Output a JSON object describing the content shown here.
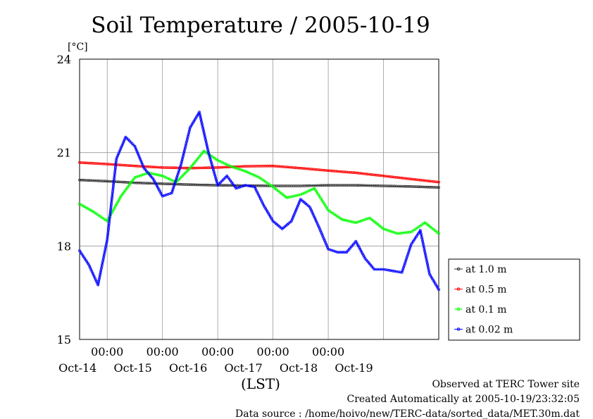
{
  "chart_data": {
    "type": "line",
    "title": "Soil Temperature / 2005-10-19",
    "ylabel": "[°C]",
    "xlabel": "(LST)",
    "ylim": [
      15,
      24
    ],
    "yticks": [
      15,
      18,
      21,
      24
    ],
    "x_range_days": [
      "2005-10-13 12:00",
      "2005-10-19 24:00"
    ],
    "xticks": [
      {
        "time": "2005-10-14 00:00",
        "label": "00:00",
        "date": "Oct-14"
      },
      {
        "time": "2005-10-15 00:00",
        "label": "00:00",
        "date": "Oct-15"
      },
      {
        "time": "2005-10-16 00:00",
        "label": "00:00",
        "date": "Oct-16"
      },
      {
        "time": "2005-10-17 00:00",
        "label": "00:00",
        "date": "Oct-17"
      },
      {
        "time": "2005-10-18 00:00",
        "label": "00:00",
        "date": "Oct-18"
      },
      {
        "time": "2005-10-19 00:00",
        "label": "",
        "date": "Oct-19"
      }
    ],
    "grid": true,
    "legend_position": "right",
    "series": [
      {
        "name": "at 1.0 m",
        "color": "#333333",
        "points": [
          [
            "2005-10-13 12:00",
            20.12
          ],
          [
            "2005-10-14 00:00",
            20.08
          ],
          [
            "2005-10-14 12:00",
            20.03
          ],
          [
            "2005-10-15 00:00",
            20.0
          ],
          [
            "2005-10-15 12:00",
            19.97
          ],
          [
            "2005-10-16 00:00",
            19.95
          ],
          [
            "2005-10-16 12:00",
            19.94
          ],
          [
            "2005-10-17 00:00",
            19.93
          ],
          [
            "2005-10-17 12:00",
            19.93
          ],
          [
            "2005-10-18 00:00",
            19.95
          ],
          [
            "2005-10-18 12:00",
            19.95
          ],
          [
            "2005-10-19 00:00",
            19.93
          ],
          [
            "2005-10-19 12:00",
            19.91
          ],
          [
            "2005-10-19 24:00",
            19.88
          ]
        ]
      },
      {
        "name": "at 0.5 m",
        "color": "#ff0000",
        "points": [
          [
            "2005-10-13 12:00",
            20.68
          ],
          [
            "2005-10-14 00:00",
            20.63
          ],
          [
            "2005-10-14 12:00",
            20.57
          ],
          [
            "2005-10-15 00:00",
            20.52
          ],
          [
            "2005-10-15 12:00",
            20.5
          ],
          [
            "2005-10-16 00:00",
            20.52
          ],
          [
            "2005-10-16 12:00",
            20.56
          ],
          [
            "2005-10-17 00:00",
            20.57
          ],
          [
            "2005-10-17 12:00",
            20.5
          ],
          [
            "2005-10-18 00:00",
            20.42
          ],
          [
            "2005-10-18 12:00",
            20.35
          ],
          [
            "2005-10-19 00:00",
            20.25
          ],
          [
            "2005-10-19 12:00",
            20.15
          ],
          [
            "2005-10-19 24:00",
            20.05
          ]
        ]
      },
      {
        "name": "at 0.1 m",
        "color": "#00ff00",
        "points": [
          [
            "2005-10-13 12:00",
            19.35
          ],
          [
            "2005-10-13 18:00",
            19.1
          ],
          [
            "2005-10-14 00:00",
            18.8
          ],
          [
            "2005-10-14 06:00",
            19.6
          ],
          [
            "2005-10-14 12:00",
            20.2
          ],
          [
            "2005-10-14 18:00",
            20.35
          ],
          [
            "2005-10-15 00:00",
            20.25
          ],
          [
            "2005-10-15 06:00",
            20.05
          ],
          [
            "2005-10-15 12:00",
            20.5
          ],
          [
            "2005-10-15 18:00",
            21.05
          ],
          [
            "2005-10-16 00:00",
            20.75
          ],
          [
            "2005-10-16 06:00",
            20.55
          ],
          [
            "2005-10-16 12:00",
            20.4
          ],
          [
            "2005-10-16 18:00",
            20.2
          ],
          [
            "2005-10-17 00:00",
            19.9
          ],
          [
            "2005-10-17 06:00",
            19.55
          ],
          [
            "2005-10-17 12:00",
            19.65
          ],
          [
            "2005-10-17 18:00",
            19.85
          ],
          [
            "2005-10-18 00:00",
            19.15
          ],
          [
            "2005-10-18 06:00",
            18.85
          ],
          [
            "2005-10-18 12:00",
            18.75
          ],
          [
            "2005-10-18 18:00",
            18.9
          ],
          [
            "2005-10-19 00:00",
            18.55
          ],
          [
            "2005-10-19 06:00",
            18.4
          ],
          [
            "2005-10-19 12:00",
            18.45
          ],
          [
            "2005-10-19 18:00",
            18.75
          ],
          [
            "2005-10-19 24:00",
            18.4
          ]
        ]
      },
      {
        "name": "at 0.02 m",
        "color": "#0000ff",
        "points": [
          [
            "2005-10-13 12:00",
            17.85
          ],
          [
            "2005-10-13 16:00",
            17.4
          ],
          [
            "2005-10-13 20:00",
            16.75
          ],
          [
            "2005-10-14 00:00",
            18.2
          ],
          [
            "2005-10-14 04:00",
            20.8
          ],
          [
            "2005-10-14 08:00",
            21.5
          ],
          [
            "2005-10-14 12:00",
            21.2
          ],
          [
            "2005-10-14 16:00",
            20.5
          ],
          [
            "2005-10-14 20:00",
            20.15
          ],
          [
            "2005-10-15 00:00",
            19.6
          ],
          [
            "2005-10-15 04:00",
            19.7
          ],
          [
            "2005-10-15 08:00",
            20.6
          ],
          [
            "2005-10-15 12:00",
            21.8
          ],
          [
            "2005-10-15 16:00",
            22.3
          ],
          [
            "2005-10-15 20:00",
            21.0
          ],
          [
            "2005-10-16 00:00",
            19.95
          ],
          [
            "2005-10-16 04:00",
            20.25
          ],
          [
            "2005-10-16 08:00",
            19.85
          ],
          [
            "2005-10-16 12:00",
            19.95
          ],
          [
            "2005-10-16 16:00",
            19.9
          ],
          [
            "2005-10-16 20:00",
            19.3
          ],
          [
            "2005-10-17 00:00",
            18.8
          ],
          [
            "2005-10-17 04:00",
            18.55
          ],
          [
            "2005-10-17 08:00",
            18.8
          ],
          [
            "2005-10-17 12:00",
            19.5
          ],
          [
            "2005-10-17 16:00",
            19.25
          ],
          [
            "2005-10-17 20:00",
            18.6
          ],
          [
            "2005-10-18 00:00",
            17.9
          ],
          [
            "2005-10-18 04:00",
            17.8
          ],
          [
            "2005-10-18 08:00",
            17.8
          ],
          [
            "2005-10-18 12:00",
            18.15
          ],
          [
            "2005-10-18 16:00",
            17.6
          ],
          [
            "2005-10-18 20:00",
            17.25
          ],
          [
            "2005-10-19 00:00",
            17.25
          ],
          [
            "2005-10-19 04:00",
            17.2
          ],
          [
            "2005-10-19 08:00",
            17.15
          ],
          [
            "2005-10-19 12:00",
            18.05
          ],
          [
            "2005-10-19 16:00",
            18.5
          ],
          [
            "2005-10-19 20:00",
            17.1
          ],
          [
            "2005-10-19 24:00",
            16.6
          ]
        ]
      }
    ]
  },
  "footer": {
    "line1": "Observed at TERC Tower site",
    "line2": "Created Automatically at 2005-10-19/23:32:05",
    "line3": "Data source : /home/hoivo/new/TERC-data/sorted_data/MET.30m.dat"
  }
}
